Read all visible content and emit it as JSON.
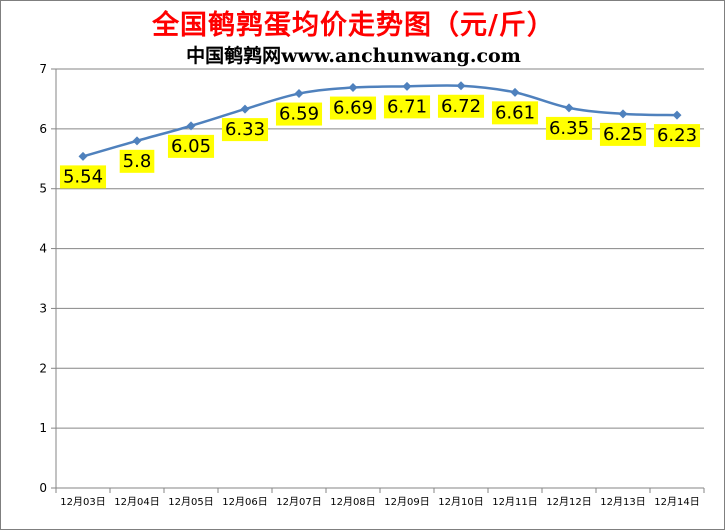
{
  "title": "全国鹌鹑蛋均价走势图（元/斤）",
  "subtitle": "中国鹌鹑网www.anchunwang.com",
  "chart_data": {
    "type": "line",
    "categories": [
      "12月03日",
      "12月04日",
      "12月05日",
      "12月06日",
      "12月07日",
      "12月08日",
      "12月09日",
      "12月10日",
      "12月11日",
      "12月12日",
      "12月13日",
      "12月14日"
    ],
    "values": [
      5.54,
      5.8,
      6.05,
      6.33,
      6.59,
      6.69,
      6.71,
      6.72,
      6.61,
      6.35,
      6.25,
      6.23
    ],
    "data_labels": [
      "5.54",
      "5.8",
      "6.05",
      "6.33",
      "6.59",
      "6.69",
      "6.71",
      "6.72",
      "6.61",
      "6.35",
      "6.25",
      "6.23"
    ],
    "y_ticks": [
      "0",
      "1",
      "2",
      "3",
      "4",
      "5",
      "6",
      "7"
    ],
    "ylim": [
      0,
      7
    ],
    "grid": "horizontal",
    "legend": "none",
    "colors": {
      "line": "#4f81bd",
      "marker": "#4f81bd",
      "label_bg": "#ffff00",
      "grid": "#868686",
      "title": "#ff0000"
    }
  }
}
